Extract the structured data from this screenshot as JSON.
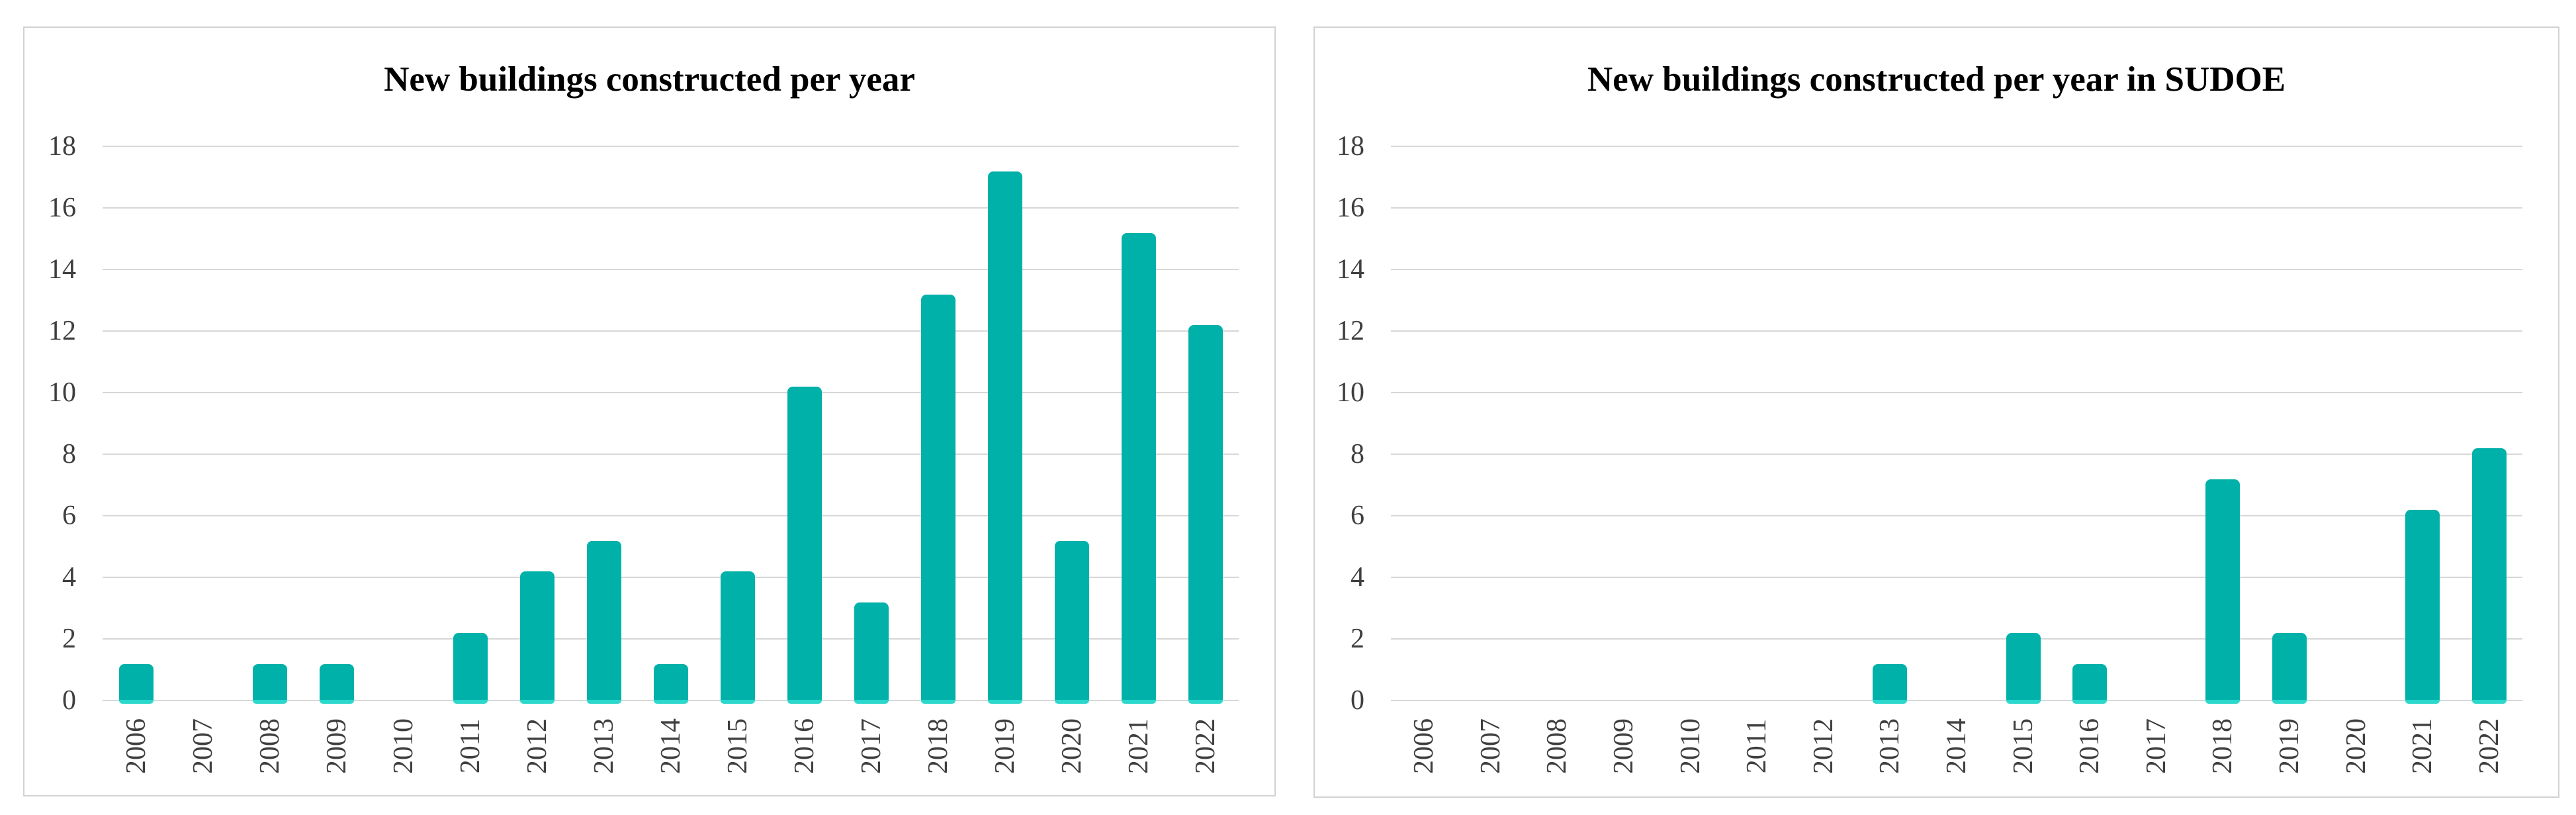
{
  "figure": {
    "description_left_title": "New buildings constructed per year",
    "description_right_title": "New buildings constructed per year in SUDOE"
  },
  "colors": {
    "bar": "#00B1A9",
    "bar_base_highlight": "#2BD8CB",
    "gridline": "#D7D7D7",
    "tick_text": "#3F3F3F",
    "title_text": "#000000",
    "panel_border": "#D2D2D2",
    "background": "#FFFFFF"
  },
  "chart_data": [
    {
      "type": "bar",
      "title": "New buildings constructed per year",
      "categories": [
        "2006",
        "2007",
        "2008",
        "2009",
        "2010",
        "2011",
        "2012",
        "2013",
        "2014",
        "2015",
        "2016",
        "2017",
        "2018",
        "2019",
        "2020",
        "2021",
        "2022"
      ],
      "values": [
        1,
        0,
        1,
        1,
        0,
        2,
        4,
        5,
        1,
        4,
        10,
        3,
        13,
        17,
        5,
        15,
        12
      ],
      "xlabel": "",
      "ylabel": "",
      "ylim": [
        0,
        18
      ],
      "yticks": [
        0,
        2,
        4,
        6,
        8,
        10,
        12,
        14,
        16,
        18
      ],
      "grid": true,
      "legend": null,
      "bar_color": "#00B1A9"
    },
    {
      "type": "bar",
      "title": "New buildings constructed per year in SUDOE",
      "categories": [
        "2006",
        "2007",
        "2008",
        "2009",
        "2010",
        "2011",
        "2012",
        "2013",
        "2014",
        "2015",
        "2016",
        "2017",
        "2018",
        "2019",
        "2020",
        "2021",
        "2022"
      ],
      "values": [
        0,
        0,
        0,
        0,
        0,
        0,
        0,
        1,
        0,
        2,
        1,
        0,
        7,
        2,
        0,
        6,
        8
      ],
      "xlabel": "",
      "ylabel": "",
      "ylim": [
        0,
        18
      ],
      "yticks": [
        0,
        2,
        4,
        6,
        8,
        10,
        12,
        14,
        16,
        18
      ],
      "grid": true,
      "legend": null,
      "bar_color": "#00B1A9"
    }
  ]
}
